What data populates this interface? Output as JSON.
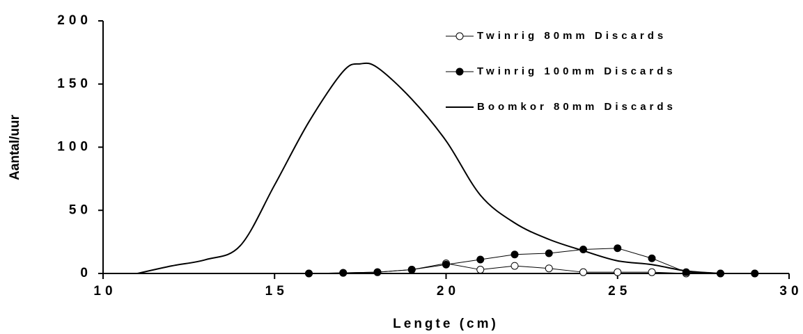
{
  "chart_data": {
    "type": "line",
    "xlabel": "Lengte (cm)",
    "ylabel": "Aantal/uur",
    "xlim": [
      10,
      30
    ],
    "xticks": [
      10,
      15,
      20,
      25,
      30
    ],
    "ylim": [
      0,
      200
    ],
    "yticks": [
      0,
      50,
      100,
      150,
      200
    ],
    "grid": false,
    "legend": "upper right",
    "series": [
      {
        "name": "Twinrig 80mm Discards",
        "color": "#000000",
        "marker": "circle-open",
        "x": [
          16,
          17,
          18,
          19,
          20,
          21,
          22,
          23,
          24,
          25,
          26,
          27,
          28,
          29
        ],
        "values": [
          0,
          0.5,
          1,
          3,
          8,
          3,
          6,
          4,
          1,
          1,
          1,
          0,
          0,
          0
        ]
      },
      {
        "name": "Twinrig 100mm Discards",
        "color": "#000000",
        "marker": "circle-filled",
        "x": [
          16,
          17,
          18,
          19,
          20,
          21,
          22,
          23,
          24,
          25,
          26,
          27,
          28,
          29
        ],
        "values": [
          0,
          0.5,
          1,
          3,
          7,
          11,
          15,
          16,
          19,
          20,
          12,
          1,
          0,
          0
        ]
      },
      {
        "name": "Boomkor 80mm Discards",
        "color": "#000000",
        "smooth": true,
        "x": [
          11,
          12,
          13,
          14,
          15,
          16,
          17,
          17.5,
          18,
          19,
          20,
          21,
          22,
          23,
          24,
          25,
          26,
          27,
          28
        ],
        "values": [
          0,
          6,
          11,
          22,
          70,
          120,
          160,
          166,
          163,
          138,
          105,
          62,
          40,
          27,
          18,
          10,
          7,
          2,
          0
        ]
      }
    ]
  }
}
